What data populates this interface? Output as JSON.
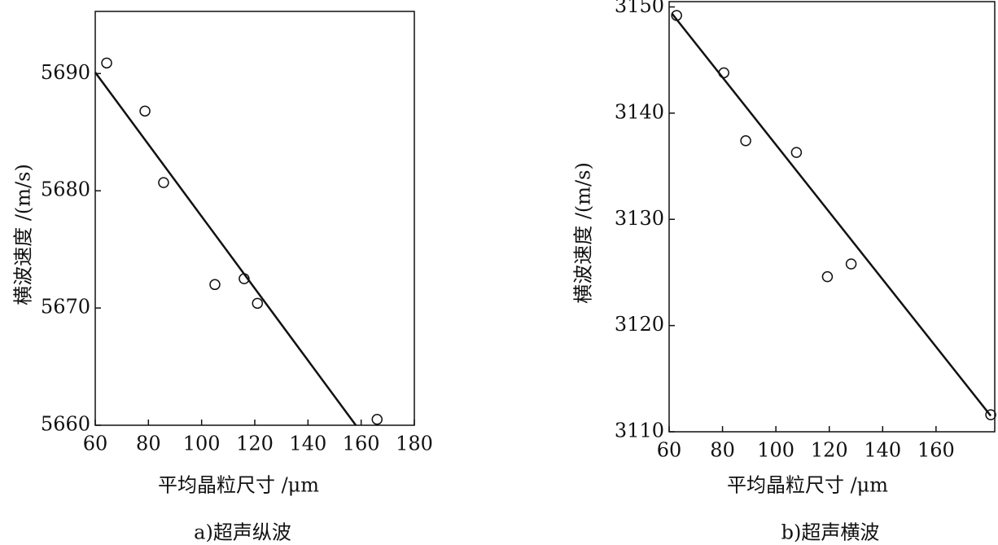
{
  "chart_data": [
    {
      "type": "scatter",
      "caption": "a)超声纵波",
      "xlabel": "平均晶粒尺寸 /μm",
      "ylabel": "横波速度 /(m/s)",
      "x": [
        64.3,
        78.7,
        85.7,
        105,
        116,
        121,
        166
      ],
      "y": [
        5690.9,
        5686.8,
        5680.7,
        5672.0,
        5672.5,
        5670.4,
        5660.5
      ],
      "fit_line": {
        "x": [
          60,
          158
        ],
        "y": [
          5690.1,
          5660
        ]
      },
      "xlim": [
        60,
        180
      ],
      "ylim": [
        5660,
        5695.3
      ],
      "xticks": [
        60,
        80,
        100,
        120,
        140,
        160,
        180
      ],
      "yticks": [
        5660,
        5670,
        5680,
        5690
      ]
    },
    {
      "type": "scatter",
      "caption": "b)超声横波",
      "xlabel": "平均晶粒尺寸 /μm",
      "ylabel": "横波速度 /(m/s)",
      "x": [
        62.8,
        80.5,
        88.7,
        107.7,
        119.3,
        128.2,
        180.5
      ],
      "y": [
        3149.2,
        3143.8,
        3137.4,
        3136.3,
        3124.6,
        3125.8,
        3111.6
      ],
      "fit_line": {
        "x": [
          61,
          180.5
        ],
        "y": [
          3149.4,
          3111.5
        ]
      },
      "xlim": [
        60,
        182
      ],
      "ylim": [
        3110,
        3150.5
      ],
      "xticks": [
        60,
        80,
        100,
        120,
        140,
        160
      ],
      "yticks": [
        3110,
        3120,
        3130,
        3140,
        3150
      ]
    }
  ]
}
